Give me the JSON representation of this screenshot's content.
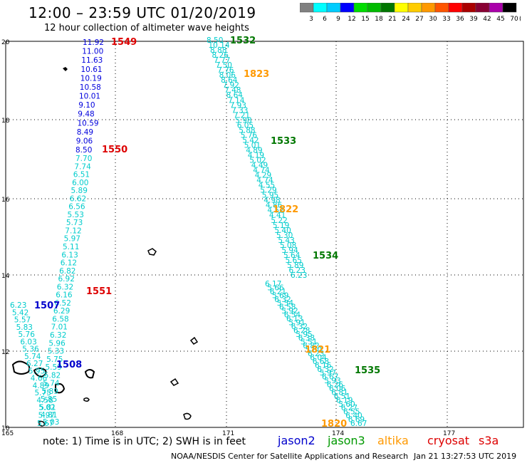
{
  "header": {
    "title": "12:00 – 23:59 UTC 01/20/2019",
    "subtitle": "12 hour collection of altimeter wave heights"
  },
  "colorbar": {
    "unit": "(ft)",
    "labels": [
      "3",
      "6",
      "9",
      "12",
      "15",
      "18",
      "21",
      "24",
      "27",
      "30",
      "33",
      "36",
      "39",
      "42",
      "45",
      "70"
    ],
    "colors": [
      "#808080",
      "#00ffff",
      "#00ccff",
      "#0000ff",
      "#00dd00",
      "#00bb00",
      "#007700",
      "#ffff00",
      "#ffcc00",
      "#ff9900",
      "#ff5500",
      "#ff0000",
      "#aa0000",
      "#880033",
      "#aa00aa",
      "#000000"
    ]
  },
  "axes": {
    "lat_labels": [
      "20",
      "18",
      "16",
      "14",
      "12",
      "10"
    ],
    "lon_labels": [
      "165",
      "168",
      "171",
      "174",
      "177"
    ]
  },
  "tracks": [
    {
      "name": "A",
      "color": "#0000dd",
      "values": [
        "11.92",
        "11.00",
        "11.63",
        "10.61",
        "10.19",
        "10.58",
        "10.01",
        "9.10",
        "9.48",
        "10.59",
        "8.49",
        "9.06",
        "8.50"
      ]
    },
    {
      "name": "B",
      "color": "#00cccc",
      "values": [
        "7.70",
        "7.74",
        "6.51",
        "6.00",
        "5.89",
        "6.62",
        "6.56",
        "5.53",
        "5.73",
        "7.12",
        "5.97",
        "5.11",
        "6.13",
        "6.12",
        "6.82",
        "6.92",
        "6.32",
        "6.16",
        "6.52",
        "6.29",
        "6.58",
        "7.01",
        "6.32",
        "5.96",
        "5.33",
        "5.75",
        "5.59",
        "5.82",
        "5.74",
        "5.89",
        "5.85",
        "5.81",
        "5.97",
        "5.67"
      ]
    },
    {
      "name": "C",
      "color": "#00cccc",
      "values": [
        "6.23",
        "5.42",
        "5.57",
        "5.83",
        "5.76",
        "6.03",
        "5.36",
        "5.74",
        "6.27",
        "5.95",
        "4.66",
        "4.89",
        "5.75",
        "4.58",
        "5.02",
        "4.81",
        "5.03"
      ]
    },
    {
      "name": "D",
      "color": "#00cccc",
      "values": [
        "8.50",
        "10.14",
        "8.88",
        "8.26",
        "7.77",
        "7.50",
        "7.76",
        "8.06",
        "8.64",
        "7.92",
        "7.48",
        "8.64",
        "7.14",
        "7.93",
        "7.33",
        "7.21",
        "5.98",
        "6.05",
        "5.88",
        "5.76",
        "5.42",
        "5.01",
        "4.89",
        "4.19",
        "5.02",
        "4.49",
        "4.74",
        "4.29",
        "4.74",
        "4.55",
        "5.29",
        "5.95",
        "4.98",
        "4.86",
        "4.52",
        "4.41",
        "5.22",
        "5.19",
        "5.40",
        "5.30",
        "5.43",
        "5.08",
        "5.94",
        "5.64",
        "5.65",
        "5.89",
        "6.23",
        "6.23"
      ]
    },
    {
      "name": "E",
      "color": "#00cccc",
      "values": [
        "6.17",
        "5.66",
        "6.21",
        "5.69",
        "6.32",
        "5.54",
        "6.58",
        "5.92",
        "6.54",
        "6.13",
        "5.91",
        "6.32",
        "6.28",
        "5.95",
        "6.38",
        "5.51",
        "6.82",
        "5.80",
        "6.23",
        "6.04",
        "6.68",
        "6.16",
        "6.32",
        "5.97",
        "6.67",
        "5.93",
        "6.26",
        "6.06",
        "6.81",
        "6.51",
        "6.19",
        "5.60",
        "6.27",
        "6.55",
        "6.40",
        "6.69",
        "6.67"
      ]
    }
  ],
  "track_labels": [
    {
      "text": "1549",
      "color": "#dd0000"
    },
    {
      "text": "1550",
      "color": "#dd0000"
    },
    {
      "text": "1551",
      "color": "#dd0000"
    },
    {
      "text": "1507",
      "color": "#0000cc"
    },
    {
      "text": "1508",
      "color": "#0000cc"
    },
    {
      "text": "1532",
      "color": "#007700"
    },
    {
      "text": "1533",
      "color": "#007700"
    },
    {
      "text": "1534",
      "color": "#007700"
    },
    {
      "text": "1535",
      "color": "#007700"
    },
    {
      "text": "1823",
      "color": "#ff9900"
    },
    {
      "text": "1822",
      "color": "#ff9900"
    },
    {
      "text": "1821",
      "color": "#ff9900"
    },
    {
      "text": "1820",
      "color": "#ff9900"
    }
  ],
  "footer": {
    "note": "note:  1) Time is in UTC;  2) SWH is in feet",
    "satellites": [
      {
        "name": "jason2",
        "color": "#0000cc"
      },
      {
        "name": "jason3",
        "color": "#009900"
      },
      {
        "name": "altika",
        "color": "#ff9900"
      },
      {
        "name": "cryosat",
        "color": "#dd0000"
      },
      {
        "name": "s3a",
        "color": "#dd0000"
      }
    ],
    "credit": "NOAA/NESDIS Center for Satellite Applications and Research",
    "timestamp": "Jan 21 13:27:53 UTC 2019"
  }
}
